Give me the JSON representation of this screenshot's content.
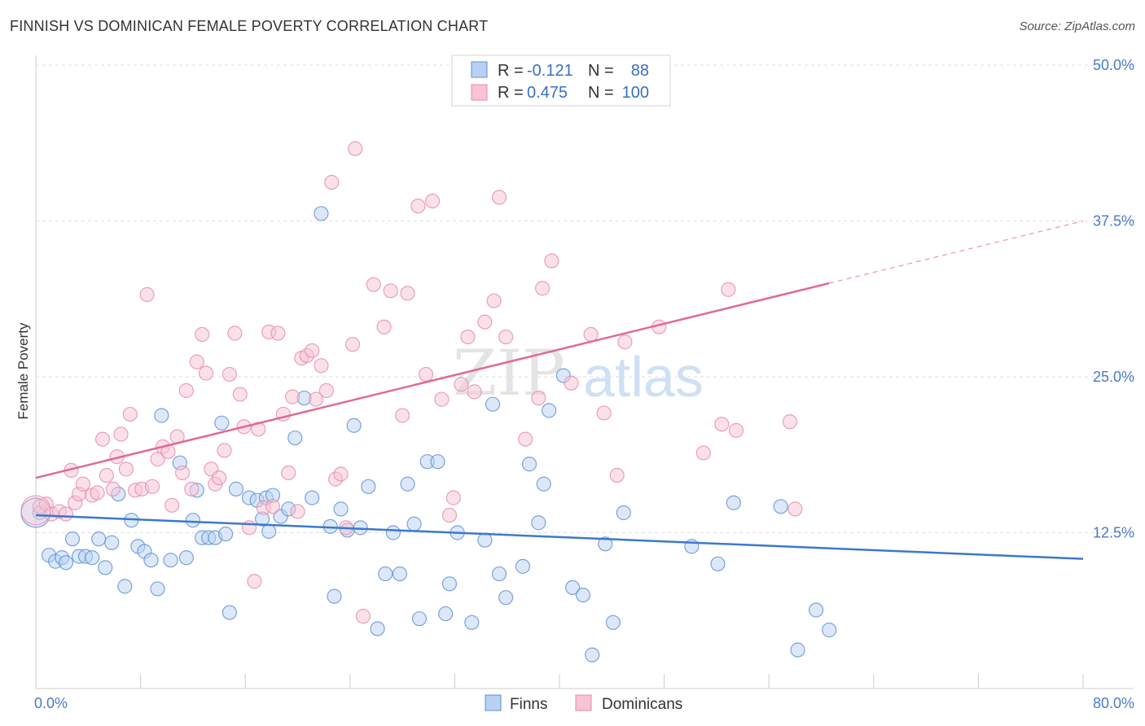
{
  "header": {
    "title": "FINNISH VS DOMINICAN FEMALE POVERTY CORRELATION CHART",
    "source": "Source: ZipAtlas.com"
  },
  "watermark": {
    "zip": "ZIP",
    "atlas": "atlas"
  },
  "colors": {
    "finns": "#5b8fd6",
    "finns_fill": "#b9d1f1",
    "finns_line": "#3b78d0",
    "dominicans": "#e88aa8",
    "dominicans_fill": "#f6c4d4",
    "dominicans_line": "#e06a92",
    "grid": "#dddddd",
    "tick": "#4a7ac8"
  },
  "legend": {
    "row1": {
      "r_label": "R =",
      "r_value": "-0.121",
      "n_label": "N =",
      "n_value": "88"
    },
    "row2": {
      "r_label": "R =",
      "r_value": "0.475",
      "n_label": "N =",
      "n_value": "100"
    }
  },
  "bottom_legend": {
    "finns": "Finns",
    "dominicans": "Dominicans"
  },
  "chart_data": {
    "type": "scatter",
    "title": "FINNISH VS DOMINICAN FEMALE POVERTY CORRELATION CHART",
    "xlabel": "",
    "ylabel": "Female Poverty",
    "xlim": [
      0,
      80
    ],
    "ylim": [
      0,
      50
    ],
    "x_tick_labels": [
      "0.0%",
      "80.0%"
    ],
    "y_ticks": [
      12.5,
      25.0,
      37.5,
      50.0
    ],
    "y_tick_labels": [
      "12.5%",
      "25.0%",
      "37.5%",
      "50.0%"
    ],
    "grid": "horizontal dashed",
    "legend_position": "top-center",
    "series": [
      {
        "name": "Finns",
        "r": -0.121,
        "n": 88,
        "trend": {
          "x": [
            0,
            80
          ],
          "y": [
            13.9,
            10.4
          ],
          "dashed_from": null
        },
        "points": [
          [
            0.3,
            14.1
          ],
          [
            1.0,
            10.7
          ],
          [
            1.5,
            10.2
          ],
          [
            2.0,
            10.5
          ],
          [
            2.3,
            10.1
          ],
          [
            2.8,
            12.0
          ],
          [
            3.3,
            10.6
          ],
          [
            3.8,
            10.6
          ],
          [
            4.3,
            10.5
          ],
          [
            4.8,
            12.0
          ],
          [
            5.3,
            9.7
          ],
          [
            5.8,
            11.7
          ],
          [
            6.3,
            15.6
          ],
          [
            6.8,
            8.2
          ],
          [
            7.3,
            13.5
          ],
          [
            7.8,
            11.4
          ],
          [
            8.3,
            11.0
          ],
          [
            8.8,
            10.3
          ],
          [
            9.3,
            8.0
          ],
          [
            9.6,
            21.9
          ],
          [
            10.3,
            10.3
          ],
          [
            11.0,
            18.1
          ],
          [
            11.5,
            10.5
          ],
          [
            12.0,
            13.5
          ],
          [
            12.3,
            15.9
          ],
          [
            12.7,
            12.1
          ],
          [
            13.2,
            12.1
          ],
          [
            13.7,
            12.1
          ],
          [
            14.2,
            21.3
          ],
          [
            14.5,
            12.4
          ],
          [
            14.8,
            6.1
          ],
          [
            15.3,
            16.0
          ],
          [
            16.3,
            15.3
          ],
          [
            16.9,
            15.1
          ],
          [
            17.3,
            13.6
          ],
          [
            17.6,
            15.3
          ],
          [
            17.8,
            12.6
          ],
          [
            18.1,
            15.5
          ],
          [
            18.7,
            13.8
          ],
          [
            19.3,
            14.4
          ],
          [
            19.8,
            20.1
          ],
          [
            20.5,
            23.3
          ],
          [
            21.1,
            15.3
          ],
          [
            21.8,
            38.1
          ],
          [
            22.5,
            13.0
          ],
          [
            22.8,
            7.4
          ],
          [
            23.3,
            14.4
          ],
          [
            23.8,
            12.7
          ],
          [
            24.3,
            21.1
          ],
          [
            24.8,
            12.9
          ],
          [
            25.4,
            16.2
          ],
          [
            26.1,
            4.8
          ],
          [
            26.7,
            9.2
          ],
          [
            27.3,
            12.5
          ],
          [
            27.8,
            9.2
          ],
          [
            28.4,
            16.4
          ],
          [
            28.9,
            13.2
          ],
          [
            29.3,
            5.6
          ],
          [
            29.9,
            18.2
          ],
          [
            30.7,
            18.2
          ],
          [
            31.3,
            6.0
          ],
          [
            31.6,
            8.4
          ],
          [
            32.2,
            12.5
          ],
          [
            33.3,
            5.3
          ],
          [
            34.3,
            11.9
          ],
          [
            34.9,
            22.8
          ],
          [
            35.4,
            9.2
          ],
          [
            35.9,
            7.3
          ],
          [
            37.2,
            9.8
          ],
          [
            37.7,
            18.0
          ],
          [
            38.4,
            13.3
          ],
          [
            38.8,
            16.4
          ],
          [
            39.2,
            22.3
          ],
          [
            40.3,
            25.1
          ],
          [
            41.0,
            8.1
          ],
          [
            41.8,
            7.5
          ],
          [
            42.5,
            2.7
          ],
          [
            43.5,
            11.6
          ],
          [
            44.1,
            5.3
          ],
          [
            44.9,
            14.1
          ],
          [
            50.1,
            11.4
          ],
          [
            52.1,
            10.0
          ],
          [
            53.3,
            14.9
          ],
          [
            56.9,
            14.6
          ],
          [
            58.2,
            3.1
          ],
          [
            59.6,
            6.3
          ],
          [
            60.6,
            4.7
          ],
          [
            0.0,
            14.1
          ]
        ]
      },
      {
        "name": "Dominicans",
        "r": 0.475,
        "n": 100,
        "trend": {
          "x": [
            0,
            80
          ],
          "y": [
            16.9,
            37.5
          ],
          "dashed_from": 60.6
        },
        "points": [
          [
            0.3,
            14.6
          ],
          [
            0.8,
            14.8
          ],
          [
            1.2,
            14.0
          ],
          [
            1.8,
            14.2
          ],
          [
            2.3,
            14.0
          ],
          [
            2.7,
            17.5
          ],
          [
            3.0,
            14.9
          ],
          [
            3.3,
            15.6
          ],
          [
            3.6,
            16.4
          ],
          [
            4.3,
            15.5
          ],
          [
            4.7,
            15.7
          ],
          [
            5.1,
            20.0
          ],
          [
            5.4,
            17.1
          ],
          [
            5.9,
            16.0
          ],
          [
            6.2,
            18.6
          ],
          [
            6.5,
            20.4
          ],
          [
            6.9,
            17.6
          ],
          [
            7.2,
            22.0
          ],
          [
            7.6,
            15.9
          ],
          [
            8.1,
            16.0
          ],
          [
            8.5,
            31.6
          ],
          [
            8.9,
            16.2
          ],
          [
            9.3,
            18.4
          ],
          [
            9.7,
            19.4
          ],
          [
            10.1,
            19.0
          ],
          [
            10.4,
            14.7
          ],
          [
            10.8,
            20.2
          ],
          [
            11.2,
            17.3
          ],
          [
            11.5,
            23.9
          ],
          [
            11.9,
            16.0
          ],
          [
            12.3,
            26.2
          ],
          [
            12.7,
            28.4
          ],
          [
            13.0,
            25.3
          ],
          [
            13.4,
            17.6
          ],
          [
            13.7,
            16.4
          ],
          [
            14.0,
            16.9
          ],
          [
            14.4,
            19.1
          ],
          [
            14.8,
            25.2
          ],
          [
            15.2,
            28.5
          ],
          [
            15.6,
            23.6
          ],
          [
            15.9,
            21.0
          ],
          [
            16.3,
            12.9
          ],
          [
            16.7,
            8.6
          ],
          [
            17.0,
            20.8
          ],
          [
            17.4,
            14.5
          ],
          [
            17.8,
            28.6
          ],
          [
            18.1,
            14.6
          ],
          [
            18.5,
            28.5
          ],
          [
            18.9,
            22.0
          ],
          [
            19.3,
            17.3
          ],
          [
            19.6,
            23.4
          ],
          [
            20.0,
            14.2
          ],
          [
            20.3,
            26.5
          ],
          [
            20.7,
            26.7
          ],
          [
            21.1,
            27.1
          ],
          [
            21.4,
            23.2
          ],
          [
            21.8,
            25.9
          ],
          [
            22.2,
            23.9
          ],
          [
            22.6,
            40.6
          ],
          [
            22.9,
            16.8
          ],
          [
            23.3,
            17.2
          ],
          [
            23.7,
            12.9
          ],
          [
            24.2,
            27.6
          ],
          [
            24.4,
            43.3
          ],
          [
            25.0,
            5.8
          ],
          [
            25.8,
            32.4
          ],
          [
            26.6,
            29.0
          ],
          [
            27.1,
            31.9
          ],
          [
            28.0,
            21.9
          ],
          [
            28.4,
            31.7
          ],
          [
            29.2,
            38.7
          ],
          [
            29.8,
            25.2
          ],
          [
            30.3,
            39.1
          ],
          [
            31.0,
            23.2
          ],
          [
            31.6,
            13.9
          ],
          [
            31.9,
            15.3
          ],
          [
            32.5,
            24.4
          ],
          [
            33.0,
            28.2
          ],
          [
            33.5,
            23.8
          ],
          [
            34.3,
            29.4
          ],
          [
            35.0,
            31.1
          ],
          [
            35.4,
            39.4
          ],
          [
            35.9,
            28.2
          ],
          [
            37.4,
            20.0
          ],
          [
            38.4,
            23.3
          ],
          [
            38.7,
            32.1
          ],
          [
            39.4,
            34.3
          ],
          [
            40.9,
            24.5
          ],
          [
            42.4,
            28.4
          ],
          [
            43.4,
            22.1
          ],
          [
            44.4,
            17.1
          ],
          [
            45.0,
            27.8
          ],
          [
            47.6,
            29.0
          ],
          [
            51.0,
            18.9
          ],
          [
            52.4,
            21.2
          ],
          [
            52.9,
            32.0
          ],
          [
            53.5,
            20.7
          ],
          [
            57.6,
            21.4
          ],
          [
            58.0,
            14.4
          ],
          [
            0.0,
            14.3
          ]
        ]
      }
    ]
  }
}
